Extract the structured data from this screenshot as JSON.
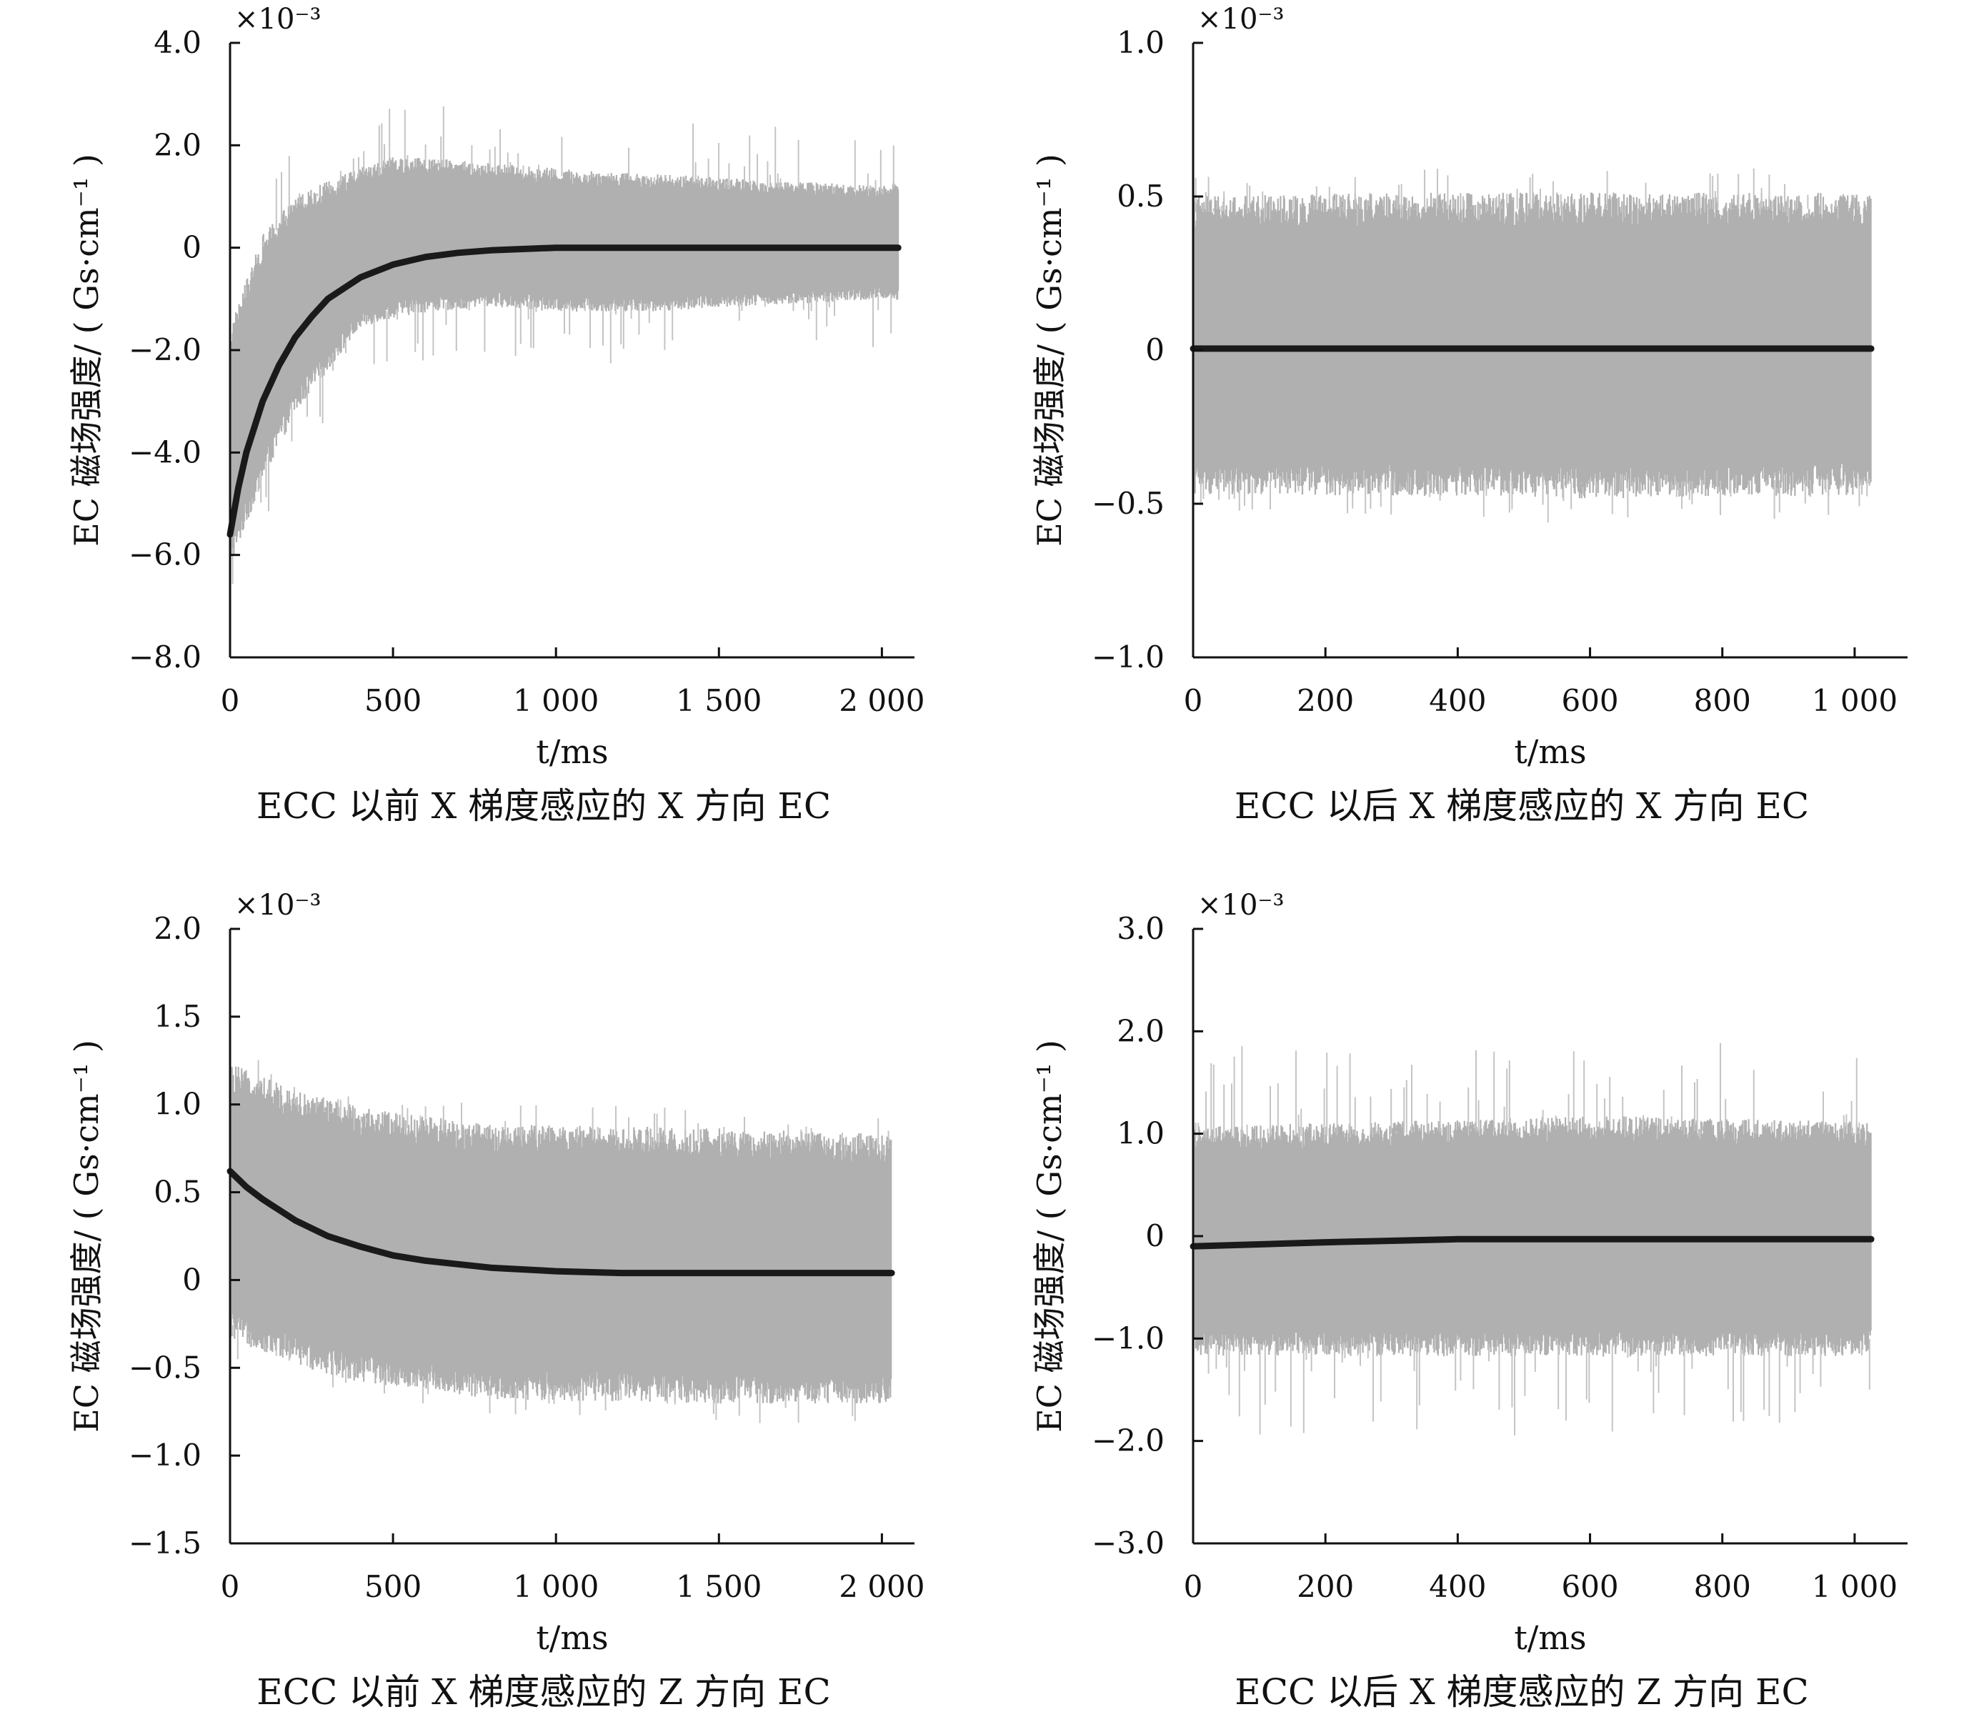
{
  "chart_data": [
    {
      "type": "line",
      "caption": "ECC 以前 X 梯度感应的 X 方向 EC",
      "xlabel": "t/ms",
      "ylabel": "EC 磁场强度/ ( Gs·cm⁻¹ )",
      "multiplier": "×10⁻³",
      "xlim": [
        0,
        2100
      ],
      "ylim": [
        -8.0,
        4.0
      ],
      "xticks": [
        0,
        500,
        1000,
        1500,
        2000
      ],
      "xtick_labels": [
        "0",
        "500",
        "1 000",
        "1 500",
        "2 000"
      ],
      "yticks": [
        -8.0,
        -6.0,
        -4.0,
        -2.0,
        0,
        2.0,
        4.0
      ],
      "ytick_labels": [
        "−8.0",
        "−6.0",
        "−4.0",
        "−2.0",
        "0",
        "2.0",
        "4.0"
      ],
      "grid": false,
      "colors": {
        "noise": "#b0b0b0",
        "fit": "#1a1a1a"
      },
      "series": [
        {
          "role": "measured-noisy",
          "band": [
            [
              0,
              -6.0,
              -1.8
            ],
            [
              100,
              -4.3,
              0.0
            ],
            [
              200,
              -3.0,
              0.8
            ],
            [
              300,
              -2.2,
              1.1
            ],
            [
              400,
              -1.4,
              1.4
            ],
            [
              500,
              -1.2,
              1.6
            ],
            [
              600,
              -1.1,
              1.6
            ],
            [
              800,
              -1.0,
              1.5
            ],
            [
              1000,
              -1.1,
              1.4
            ],
            [
              1300,
              -1.1,
              1.3
            ],
            [
              1600,
              -1.0,
              1.2
            ],
            [
              2000,
              -0.9,
              1.1
            ],
            [
              2050,
              -0.9,
              1.2
            ]
          ],
          "outlier_span": 0.6
        },
        {
          "role": "fitted",
          "x": [
            0,
            25,
            50,
            100,
            150,
            200,
            250,
            300,
            400,
            500,
            600,
            700,
            800,
            1000,
            1500,
            2050
          ],
          "y": [
            -5.6,
            -4.7,
            -4.0,
            -3.0,
            -2.3,
            -1.75,
            -1.35,
            -1.0,
            -0.58,
            -0.33,
            -0.18,
            -0.1,
            -0.05,
            0,
            0,
            0
          ]
        }
      ]
    },
    {
      "type": "line",
      "caption": "ECC 以后 X 梯度感应的 X 方向 EC",
      "xlabel": "t/ms",
      "ylabel": "EC 磁场强度/ ( Gs·cm⁻¹ )",
      "multiplier": "×10⁻³",
      "xlim": [
        0,
        1080
      ],
      "ylim": [
        -1.0,
        1.0
      ],
      "xticks": [
        0,
        200,
        400,
        600,
        800,
        1000
      ],
      "xtick_labels": [
        "0",
        "200",
        "400",
        "600",
        "800",
        "1 000"
      ],
      "yticks": [
        -1.0,
        -0.5,
        0,
        0.5,
        1.0
      ],
      "ytick_labels": [
        "−1.0",
        "−0.5",
        "0",
        "0.5",
        "1.0"
      ],
      "grid": false,
      "colors": {
        "noise": "#b0b0b0",
        "fit": "#1a1a1a"
      },
      "series": [
        {
          "role": "measured-noisy",
          "band": [
            [
              0,
              -0.42,
              0.45
            ],
            [
              300,
              -0.42,
              0.46
            ],
            [
              600,
              -0.43,
              0.46
            ],
            [
              1000,
              -0.42,
              0.46
            ],
            [
              1025,
              -0.42,
              0.45
            ]
          ],
          "outlier_span": 0.4
        },
        {
          "role": "fitted",
          "x": [
            0,
            1025
          ],
          "y": [
            0.005,
            0.005
          ]
        }
      ]
    },
    {
      "type": "line",
      "caption": "ECC 以前 X 梯度感应的 Z 方向 EC",
      "xlabel": "t/ms",
      "ylabel": "EC 磁场强度/ ( Gs·cm⁻¹ )",
      "multiplier": "×10⁻³",
      "xlim": [
        0,
        2100
      ],
      "ylim": [
        -1.5,
        2.0
      ],
      "xticks": [
        0,
        500,
        1000,
        1500,
        2000
      ],
      "xtick_labels": [
        "0",
        "500",
        "1 000",
        "1 500",
        "2 000"
      ],
      "yticks": [
        -1.5,
        -1.0,
        -0.5,
        0,
        0.5,
        1.0,
        1.5,
        2.0
      ],
      "ytick_labels": [
        "−1.5",
        "−1.0",
        "−0.5",
        "0",
        "0.5",
        "1.0",
        "1.5",
        "2.0"
      ],
      "grid": false,
      "colors": {
        "noise": "#b0b0b0",
        "fit": "#1a1a1a"
      },
      "series": [
        {
          "role": "measured-noisy",
          "band": [
            [
              0,
              -0.25,
              1.15
            ],
            [
              200,
              -0.4,
              1.0
            ],
            [
              400,
              -0.5,
              0.9
            ],
            [
              600,
              -0.55,
              0.85
            ],
            [
              800,
              -0.6,
              0.8
            ],
            [
              1000,
              -0.6,
              0.8
            ],
            [
              1500,
              -0.62,
              0.78
            ],
            [
              2000,
              -0.62,
              0.75
            ],
            [
              2030,
              -0.62,
              0.75
            ]
          ],
          "outlier_span": 0.35
        },
        {
          "role": "fitted",
          "x": [
            0,
            50,
            100,
            200,
            300,
            400,
            500,
            600,
            700,
            800,
            1000,
            1200,
            1500,
            2030
          ],
          "y": [
            0.62,
            0.53,
            0.46,
            0.34,
            0.25,
            0.19,
            0.14,
            0.11,
            0.09,
            0.07,
            0.05,
            0.04,
            0.04,
            0.04
          ]
        }
      ]
    },
    {
      "type": "line",
      "caption": "ECC 以后 X 梯度感应的 Z 方向 EC",
      "xlabel": "t/ms",
      "ylabel": "EC 磁场强度/ ( Gs·cm⁻¹ )",
      "multiplier": "×10⁻³",
      "xlim": [
        0,
        1080
      ],
      "ylim": [
        -3.0,
        3.0
      ],
      "xticks": [
        0,
        200,
        400,
        600,
        800,
        1000
      ],
      "xtick_labels": [
        "0",
        "200",
        "400",
        "600",
        "800",
        "1 000"
      ],
      "yticks": [
        -3.0,
        -2.0,
        -1.0,
        0,
        1.0,
        2.0,
        3.0
      ],
      "ytick_labels": [
        "−3.0",
        "−2.0",
        "−1.0",
        "0",
        "1.0",
        "2.0",
        "3.0"
      ],
      "grid": false,
      "colors": {
        "noise": "#b0b0b0",
        "fit": "#1a1a1a"
      },
      "series": [
        {
          "role": "measured-noisy",
          "band": [
            [
              0,
              -1.05,
              0.95
            ],
            [
              300,
              -1.05,
              1.0
            ],
            [
              600,
              -1.05,
              1.05
            ],
            [
              1000,
              -1.05,
              1.0
            ],
            [
              1025,
              -1.0,
              1.0
            ]
          ],
          "outlier_span": 0.9
        },
        {
          "role": "fitted",
          "x": [
            0,
            100,
            200,
            400,
            600,
            800,
            1025
          ],
          "y": [
            -0.1,
            -0.08,
            -0.06,
            -0.03,
            -0.03,
            -0.03,
            -0.03
          ]
        }
      ]
    }
  ]
}
